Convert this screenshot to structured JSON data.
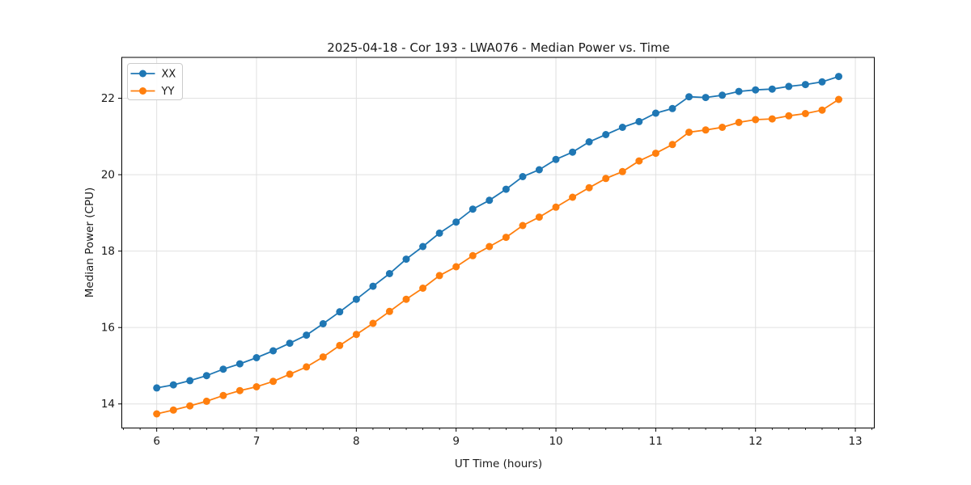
{
  "chart_data": {
    "type": "line",
    "title": "2025-04-18 - Cor 193 - LWA076 - Median Power vs. Time",
    "xlabel": "UT Time (hours)",
    "ylabel": "Median Power (CPU)",
    "x": [
      6.0,
      6.167,
      6.333,
      6.5,
      6.667,
      6.833,
      7.0,
      7.167,
      7.333,
      7.5,
      7.667,
      7.833,
      8.0,
      8.167,
      8.333,
      8.5,
      8.667,
      8.833,
      9.0,
      9.167,
      9.333,
      9.5,
      9.667,
      9.833,
      10.0,
      10.167,
      10.333,
      10.5,
      10.667,
      10.833,
      11.0,
      11.167,
      11.333,
      11.5,
      11.667,
      11.833,
      12.0,
      12.167,
      12.333,
      12.5,
      12.667,
      12.833
    ],
    "series": [
      {
        "name": "XX",
        "color": "#1f77b4",
        "values": [
          14.42,
          14.5,
          14.61,
          14.74,
          14.91,
          15.05,
          15.21,
          15.39,
          15.59,
          15.8,
          16.1,
          16.41,
          16.74,
          17.08,
          17.41,
          17.79,
          18.12,
          18.47,
          18.76,
          19.1,
          19.33,
          19.62,
          19.95,
          20.13,
          20.4,
          20.59,
          20.86,
          21.05,
          21.24,
          21.39,
          21.61,
          21.73,
          22.04,
          22.02,
          22.08,
          22.18,
          22.22,
          22.24,
          22.31,
          22.36,
          22.43,
          22.57
        ]
      },
      {
        "name": "YY",
        "color": "#ff7f0e",
        "values": [
          13.74,
          13.84,
          13.95,
          14.07,
          14.22,
          14.35,
          14.45,
          14.59,
          14.78,
          14.97,
          15.23,
          15.53,
          15.82,
          16.11,
          16.42,
          16.74,
          17.03,
          17.36,
          17.59,
          17.88,
          18.12,
          18.36,
          18.67,
          18.89,
          19.15,
          19.41,
          19.66,
          19.9,
          20.08,
          20.36,
          20.56,
          20.79,
          21.11,
          21.17,
          21.24,
          21.37,
          21.44,
          21.46,
          21.54,
          21.6,
          21.69,
          21.97
        ]
      }
    ],
    "xlim": [
      5.65,
      13.19
    ],
    "ylim": [
      13.37,
      23.07
    ],
    "xticks": [
      6,
      7,
      8,
      9,
      10,
      11,
      12,
      13
    ],
    "yticks": [
      14,
      16,
      18,
      20,
      22
    ],
    "x_minor_step": 0.16667,
    "grid": true,
    "grid_color": "#e0e0e0",
    "legend_position": "upper left",
    "marker": "circle",
    "marker_radius": 4.5,
    "line_width": 1.8,
    "background": "#ffffff",
    "spine_color": "#000000"
  }
}
